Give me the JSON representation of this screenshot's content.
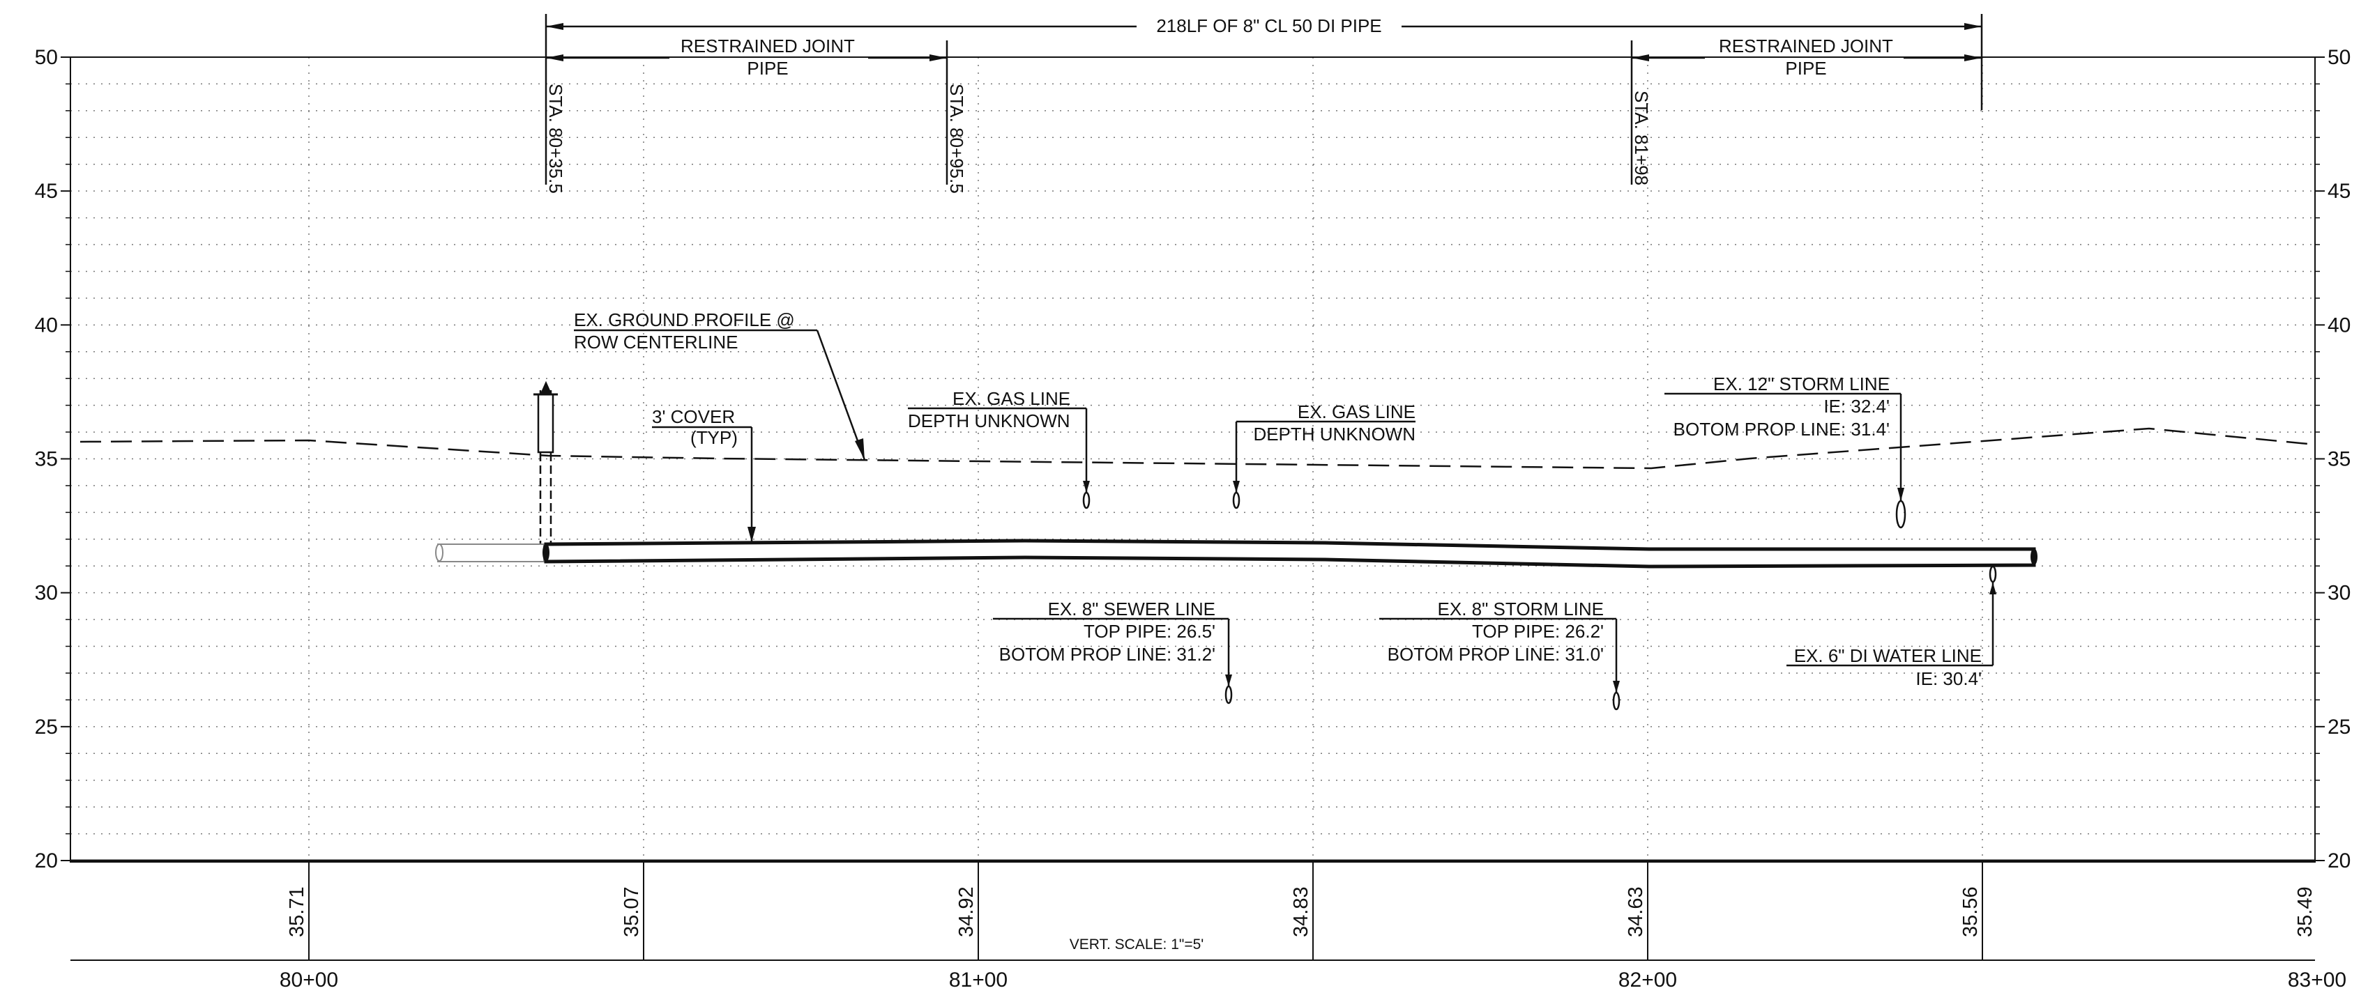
{
  "sheet": {
    "vertical_scale_label": "VERT. SCALE: 1\"=5'",
    "line_color": "#111111",
    "grid_color": "#777777"
  },
  "elevation_axis": {
    "ticks": [
      "50",
      "45",
      "40",
      "35",
      "30",
      "25",
      "20"
    ]
  },
  "stationing": {
    "major_stations": [
      {
        "label": "80+00",
        "sta": 80.0
      },
      {
        "label": "81+00",
        "sta": 81.0
      },
      {
        "label": "82+00",
        "sta": 82.0
      },
      {
        "label": "83+00",
        "sta": 83.0
      }
    ],
    "ground_elevations": [
      {
        "label": "35.71",
        "sta": 80.0
      },
      {
        "label": "35.07",
        "sta": 80.5
      },
      {
        "label": "34.92",
        "sta": 81.0
      },
      {
        "label": "34.83",
        "sta": 81.5
      },
      {
        "label": "34.63",
        "sta": 82.0
      },
      {
        "label": "35.56",
        "sta": 82.5
      },
      {
        "label": "35.49",
        "sta": 83.0
      }
    ]
  },
  "dimensions": {
    "overall": {
      "label": "218LF OF 8\" CL 50 DI PIPE",
      "from_sta": 80.355,
      "to_sta": 82.5
    },
    "restrained_left": {
      "line1": "RESTRAINED JOINT",
      "line2": "PIPE",
      "from_sta": 80.355,
      "to_sta": 80.955
    },
    "restrained_right": {
      "line1": "RESTRAINED JOINT",
      "line2": "PIPE",
      "from_sta": 81.98,
      "to_sta": 82.5
    }
  },
  "station_callouts": [
    {
      "label": "STA. 80+35.5",
      "sta": 80.355
    },
    {
      "label": "STA. 80+95.5",
      "sta": 80.955
    },
    {
      "label": "STA. 81+98",
      "sta": 81.98
    }
  ],
  "ground_profile_label": {
    "line1": "EX. GROUND PROFILE @",
    "line2": "ROW CENTERLINE"
  },
  "cover_label": {
    "line1": "3' COVER",
    "line2": "(TYP)"
  },
  "utilities": {
    "gas_line_1": {
      "line1": "EX. GAS LINE",
      "line2": "DEPTH UNKNOWN"
    },
    "gas_line_2": {
      "line1": "EX. GAS LINE",
      "line2": "DEPTH UNKNOWN"
    },
    "storm_12": {
      "line1": "EX. 12\" STORM LINE",
      "line2": "IE: 32.4'",
      "line3": "BOTOM PROP LINE: 31.4'"
    },
    "sewer_8": {
      "line1": "EX. 8\" SEWER LINE",
      "line2": "TOP PIPE: 26.5'",
      "line3": "BOTOM PROP LINE: 31.2'"
    },
    "storm_8": {
      "line1": "EX. 8\" STORM LINE",
      "line2": "TOP PIPE: 26.2'",
      "line3": "BOTOM PROP LINE: 31.0'"
    },
    "water_6": {
      "line1": "EX. 6\" DI WATER LINE",
      "line2": "IE: 30.4'"
    }
  }
}
